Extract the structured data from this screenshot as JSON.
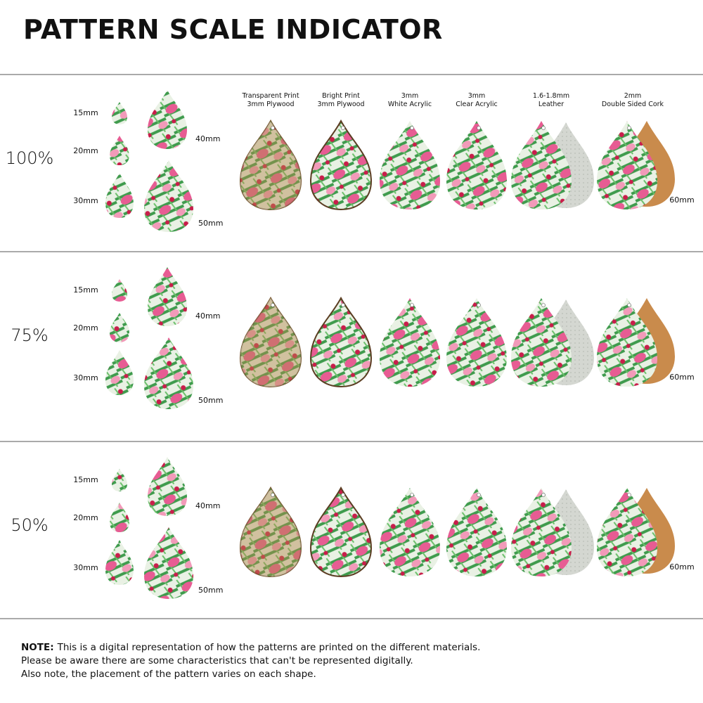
{
  "title": "PATTERN SCALE INDICATOR",
  "materials": [
    {
      "line1": "Transparent Print",
      "line2": "3mm Plywood"
    },
    {
      "line1": "Bright Print",
      "line2": "3mm Plywood"
    },
    {
      "line1": "3mm",
      "line2": "White Acrylic"
    },
    {
      "line1": "3mm",
      "line2": "Clear Acrylic"
    },
    {
      "line1": "1.6-1.8mm",
      "line2": "Leather"
    },
    {
      "line1": "2mm",
      "line2": "Double Sided Cork"
    }
  ],
  "sections": [
    {
      "scale": "100%",
      "sizes": [
        "15mm",
        "20mm",
        "30mm",
        "40mm",
        "50mm"
      ],
      "large_size": "60mm"
    },
    {
      "scale": "75%",
      "sizes": [
        "15mm",
        "20mm",
        "30mm",
        "40mm",
        "50mm"
      ],
      "large_size": "60mm"
    },
    {
      "scale": "50%",
      "sizes": [
        "15mm",
        "20mm",
        "30mm",
        "40mm",
        "50mm"
      ],
      "large_size": "60mm"
    }
  ],
  "note": {
    "label": "NOTE:",
    "lines": [
      "This is a digital representation of how the patterns are printed on the different materials.",
      "Please be aware there are some characteristics that can't be represented digitally.",
      "Also note, the placement of the pattern varies on each shape."
    ]
  }
}
